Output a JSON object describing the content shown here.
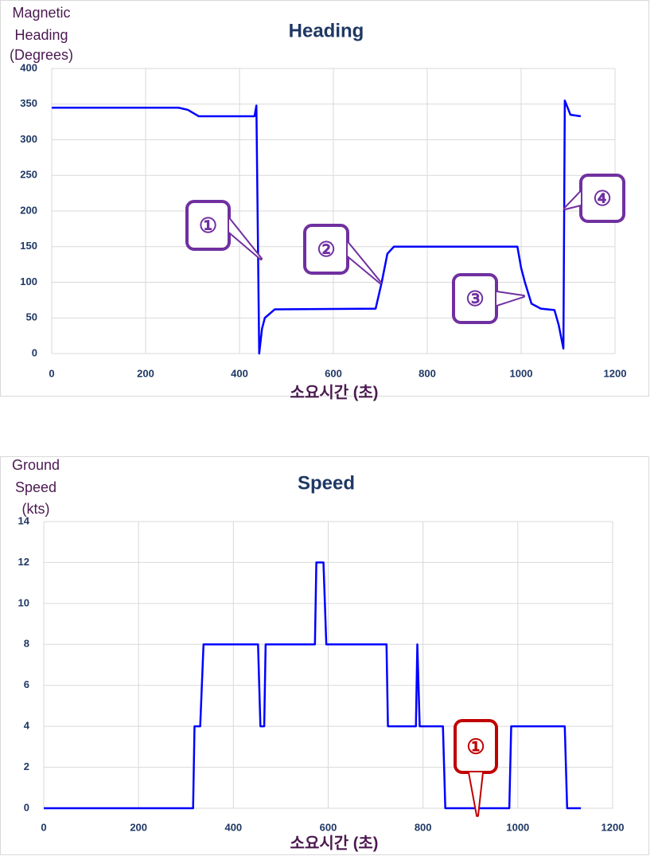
{
  "chart_data": [
    {
      "type": "line",
      "title": "Heading",
      "ylabel": [
        "Magnetic",
        "Heading",
        "(Degrees)"
      ],
      "xlabel": "소요시간 (초)",
      "x": [
        0,
        270,
        290,
        313,
        432,
        436,
        442,
        448,
        454,
        475,
        690,
        703,
        715,
        729,
        992,
        1000,
        1008,
        1022,
        1042,
        1071,
        1080,
        1090,
        1093,
        1105,
        1127
      ],
      "values": [
        345,
        345,
        342,
        333,
        333,
        348,
        0,
        35,
        50,
        62,
        63,
        100,
        140,
        150,
        150,
        120,
        100,
        70,
        63,
        61,
        40,
        7,
        355,
        335,
        333
      ],
      "color": "#0000ff",
      "xlim": [
        0,
        1200
      ],
      "xticks": [
        0,
        200,
        400,
        600,
        800,
        1000,
        1200
      ],
      "ylim": [
        0,
        400
      ],
      "yticks": [
        0,
        50,
        100,
        150,
        200,
        250,
        300,
        350,
        400
      ],
      "grid": true,
      "annotations": [
        "①",
        "②",
        "③",
        "④"
      ],
      "annotation_color": "#7030a0"
    },
    {
      "type": "line",
      "title": "Speed",
      "ylabel": [
        "Ground",
        "Speed",
        "(kts)"
      ],
      "xlabel": "소요시간 (초)",
      "x": [
        0,
        315,
        318,
        330,
        337,
        452,
        457,
        465,
        468,
        572,
        575,
        590,
        596,
        723,
        726,
        785,
        788,
        793,
        842,
        847,
        982,
        986,
        1099,
        1104,
        1133
      ],
      "values": [
        0,
        0,
        4,
        4,
        8,
        8,
        4,
        4,
        8,
        8,
        12,
        12,
        8,
        8,
        4,
        4,
        8,
        4,
        4,
        0,
        0,
        4,
        4,
        0,
        0
      ],
      "color": "#0000ff",
      "xlim": [
        0,
        1200
      ],
      "xticks": [
        0,
        200,
        400,
        600,
        800,
        1000,
        1200
      ],
      "ylim": [
        0,
        14
      ],
      "yticks": [
        0,
        2,
        4,
        6,
        8,
        10,
        12,
        14
      ],
      "grid": true,
      "annotations": [
        "①"
      ],
      "annotation_color": "#c00000"
    }
  ]
}
